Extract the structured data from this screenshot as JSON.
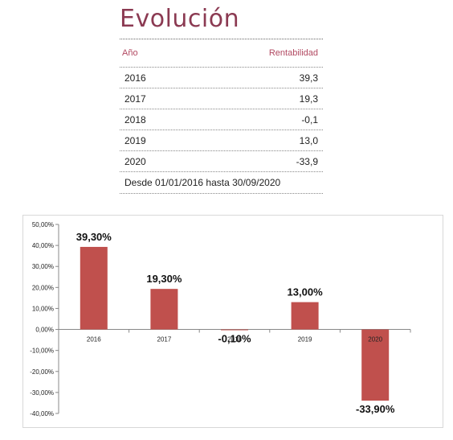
{
  "table": {
    "title": "Evolución",
    "col_year": "Año",
    "col_return": "Rentabilidad",
    "rows": [
      {
        "year": "2016",
        "value": "39,3"
      },
      {
        "year": "2017",
        "value": "19,3"
      },
      {
        "year": "2018",
        "value": "-0,1"
      },
      {
        "year": "2019",
        "value": "13,0"
      },
      {
        "year": "2020",
        "value": "-33,9"
      }
    ],
    "note": "Desde 01/01/2016 hasta 30/09/2020"
  },
  "colors": {
    "title": "#8b3a52",
    "header": "#b24a62",
    "bar": "#c0504d"
  },
  "chart_data": {
    "type": "bar",
    "categories": [
      "2016",
      "2017",
      "2018",
      "2019",
      "2020"
    ],
    "values": [
      39.3,
      19.3,
      -0.1,
      13.0,
      -33.9
    ],
    "data_labels": [
      "39,30%",
      "19,30%",
      "-0,10%",
      "13,00%",
      "-33,90%"
    ],
    "yticks": [
      "50,00%",
      "40,00%",
      "30,00%",
      "20,00%",
      "10,00%",
      "0,00%",
      "-10,00%",
      "-20,00%",
      "-30,00%",
      "-40,00%"
    ],
    "ylim": [
      -40,
      50
    ],
    "grid": false,
    "legend": "none",
    "title": "",
    "xlabel": "",
    "ylabel": ""
  }
}
